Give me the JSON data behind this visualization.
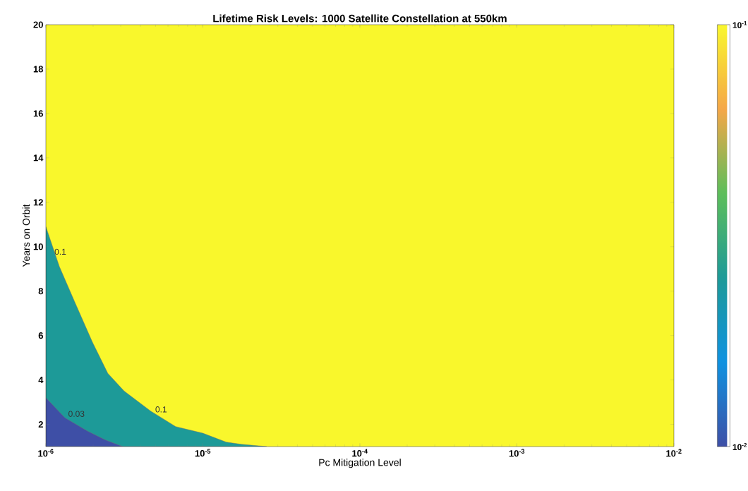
{
  "chart_data": {
    "type": "area",
    "title": "Lifetime Risk Levels:  1000 Satellite Constellation at 550km",
    "xlabel": "Pc Mitigation Level",
    "ylabel": "Years on Orbit",
    "log": "x",
    "xlim": [
      1e-06,
      0.01
    ],
    "ylim": [
      1,
      20
    ],
    "xticks": [
      {
        "value": 1e-06,
        "label": "10$^{-6}$"
      },
      {
        "value": 1e-05,
        "label": "10$^{-5}$"
      },
      {
        "value": 0.0001,
        "label": "10$^{-4}$"
      },
      {
        "value": 0.001,
        "label": "10$^{-3}$"
      },
      {
        "value": 0.01,
        "label": "10$^{-2}$"
      }
    ],
    "yticks": [
      2,
      4,
      6,
      8,
      10,
      12,
      14,
      16,
      18,
      20
    ],
    "clim": [
      0.01,
      0.1
    ],
    "cticks": [
      {
        "value": 0.01,
        "label": "10$^{-2}$"
      },
      {
        "value": 0.1,
        "label": "10$^{-1}$"
      }
    ],
    "series": [
      {
        "color": "#1d9a98",
        "x": [
          1e-06,
          1.22e-06,
          1.53e-06,
          1.98e-06,
          2.48e-06,
          3.15e-06,
          4.65e-06,
          6.71e-06,
          1e-05,
          1.41e-05,
          1.76e-05,
          2.55e-05
        ],
        "values": [
          10.9,
          9.1,
          7.5,
          5.7,
          4.3,
          3.5,
          2.6,
          1.9,
          1.6,
          1.2,
          1.1,
          1.0
        ]
      },
      {
        "color": "#3e4fa6",
        "x": [
          1e-06,
          1.32e-06,
          1.84e-06,
          2.39e-06,
          3.09e-06
        ],
        "values": [
          3.2,
          2.3,
          1.7,
          1.3,
          1.0
        ]
      }
    ],
    "annotations": [
      {
        "text": "0.1",
        "x": 1.12e-06,
        "y": 9.6
      },
      {
        "text": "0.1",
        "x": 4.91e-06,
        "y": 2.5
      },
      {
        "text": "0.03",
        "x": 1.37e-06,
        "y": 2.3
      }
    ]
  }
}
